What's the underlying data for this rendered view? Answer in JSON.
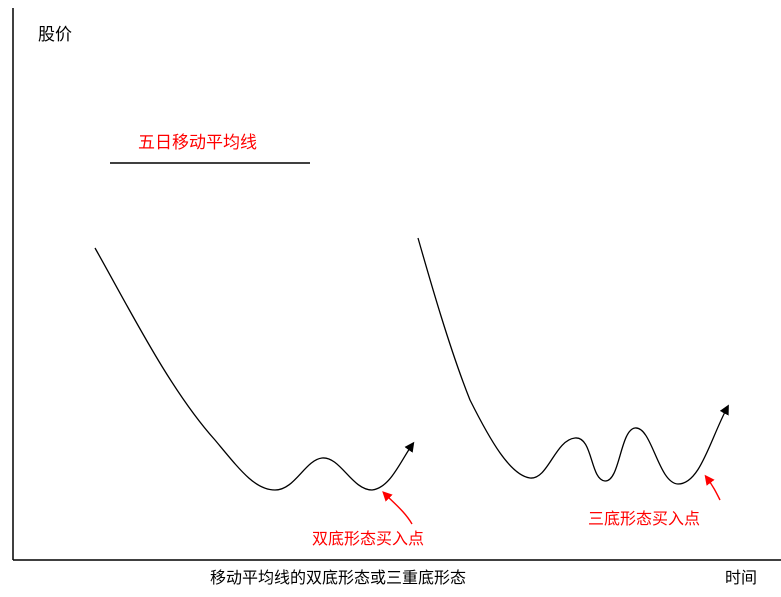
{
  "axes": {
    "y_label": "股价",
    "x_label": "时间"
  },
  "legend": {
    "label": "五日移动平均线",
    "label_color": "#ff0000"
  },
  "annotations": {
    "double_bottom": "双底形态买入点",
    "triple_bottom": "三底形态买入点",
    "color": "#ff0000"
  },
  "caption": "移动平均线的双底形态或三重底形态",
  "colors": {
    "line": "#000000",
    "annotation": "#ff0000",
    "background": "#ffffff"
  }
}
